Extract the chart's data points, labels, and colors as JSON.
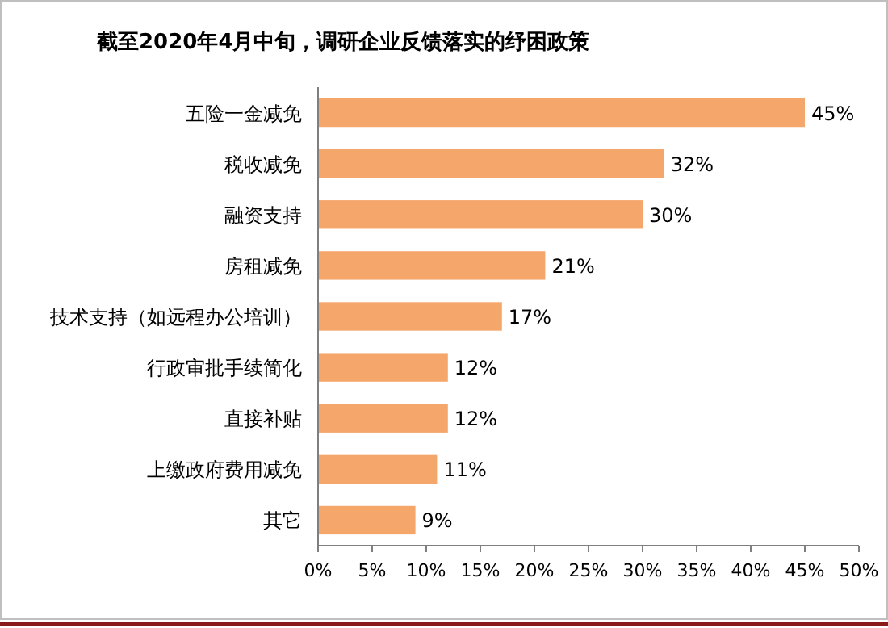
{
  "chart_data": {
    "type": "bar",
    "orientation": "horizontal",
    "title": "截至**2020**年**4**月中旬，调研企业反馈落实的纾困政策",
    "categories": [
      "五险一金减免",
      "税收减免",
      "融资支持",
      "房租减免",
      "技术支持（如远程办公培训）",
      "行政审批手续简化",
      "直接补贴",
      "上缴政府费用减免",
      "其它"
    ],
    "values": [
      45,
      32,
      30,
      21,
      17,
      12,
      12,
      11,
      9
    ],
    "value_labels": [
      "45%",
      "32%",
      "30%",
      "21%",
      "17%",
      "12%",
      "12%",
      "11%",
      "9%"
    ],
    "color": "#f5a66b",
    "xlim": [
      0,
      50
    ],
    "xticks": [
      {
        "value": 0,
        "label": "0%"
      },
      {
        "value": 5,
        "label": "5%"
      },
      {
        "value": 10,
        "label": "10%"
      },
      {
        "value": 15,
        "label": "15%"
      },
      {
        "value": 20,
        "label": "20%"
      },
      {
        "value": 25,
        "label": "25%"
      },
      {
        "value": 30,
        "label": "30%"
      },
      {
        "value": 35,
        "label": "35%"
      },
      {
        "value": 40,
        "label": "40%"
      },
      {
        "value": 45,
        "label": "45%"
      },
      {
        "value": 50,
        "label": "50%"
      }
    ],
    "grid": false
  }
}
